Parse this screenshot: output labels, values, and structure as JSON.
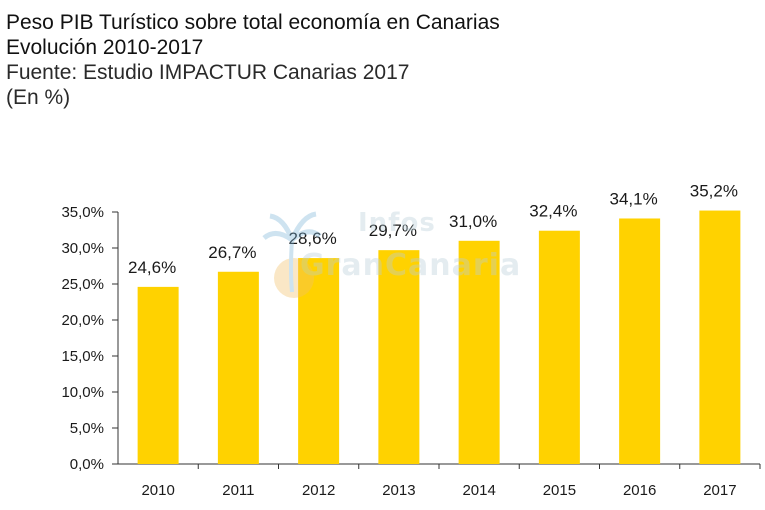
{
  "header": {
    "title": "Peso PIB Turístico sobre total economía en Canarias",
    "subtitle": "Evolución 2010-2017",
    "source": "Fuente: Estudio IMPACTUR Canarias 2017",
    "unit": "(En %)"
  },
  "watermark": {
    "line1": "Infos",
    "line2": "GranCanaria"
  },
  "colors": {
    "bar": "#FFD200",
    "axis": "#333333",
    "text": "#1a1a1a"
  },
  "chart_data": {
    "type": "bar",
    "title": "Peso PIB Turístico sobre total economía en Canarias",
    "subtitle": "Evolución 2010-2017",
    "xlabel": "",
    "ylabel": "",
    "categories": [
      "2010",
      "2011",
      "2012",
      "2013",
      "2014",
      "2015",
      "2016",
      "2017"
    ],
    "values": [
      24.6,
      26.7,
      28.6,
      29.7,
      31.0,
      32.4,
      34.1,
      35.2
    ],
    "data_labels": [
      "24,6%",
      "26,7%",
      "28,6%",
      "29,7%",
      "31,0%",
      "32,4%",
      "34,1%",
      "35,2%"
    ],
    "y_ticks": [
      0,
      5,
      10,
      15,
      20,
      25,
      30,
      35
    ],
    "y_tick_labels": [
      "0,0%",
      "5,0%",
      "10,0%",
      "15,0%",
      "20,0%",
      "25,0%",
      "30,0%",
      "35,0%"
    ],
    "ylim": [
      0,
      35
    ],
    "grid": false,
    "legend": "none"
  }
}
